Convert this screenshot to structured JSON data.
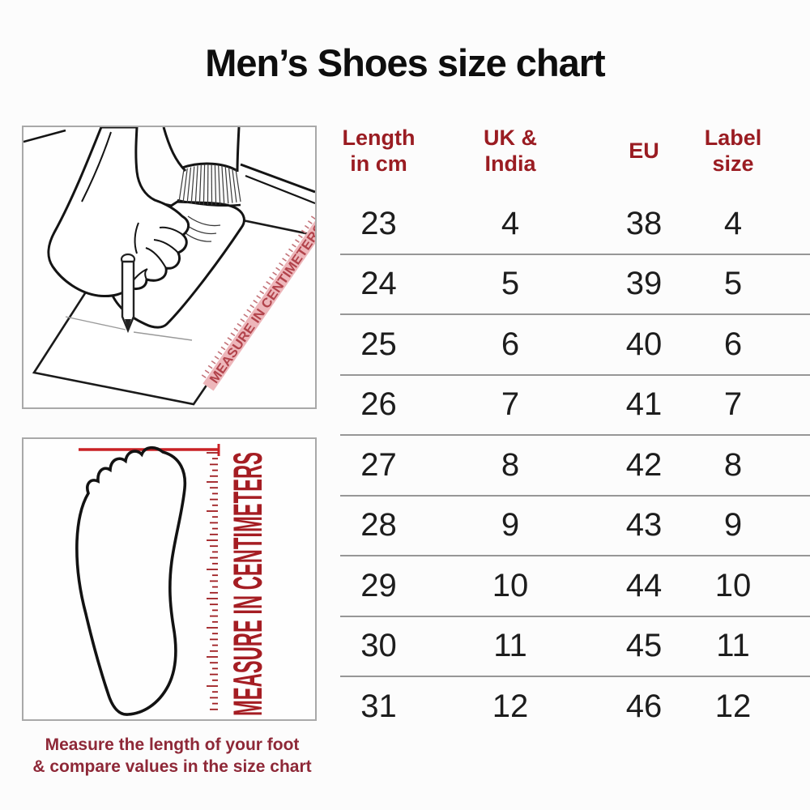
{
  "title": "Men’s Shoes size chart",
  "table": {
    "headers": [
      {
        "line1": "Length",
        "line2": "in cm"
      },
      {
        "line1": "UK &",
        "line2": "India"
      },
      {
        "line1": "EU",
        "line2": ""
      },
      {
        "line1": "Label",
        "line2": "size"
      }
    ],
    "rows": [
      [
        "23",
        "4",
        "38",
        "4"
      ],
      [
        "24",
        "5",
        "39",
        "5"
      ],
      [
        "25",
        "6",
        "40",
        "6"
      ],
      [
        "26",
        "7",
        "41",
        "7"
      ],
      [
        "27",
        "8",
        "42",
        "8"
      ],
      [
        "28",
        "9",
        "43",
        "9"
      ],
      [
        "29",
        "10",
        "44",
        "10"
      ],
      [
        "30",
        "11",
        "45",
        "11"
      ],
      [
        "31",
        "12",
        "46",
        "12"
      ]
    ]
  },
  "chart_data": {
    "type": "table",
    "title": "Men’s Shoes size chart",
    "columns": [
      "Length in cm",
      "UK & India",
      "EU",
      "Label size"
    ],
    "rows": [
      [
        23,
        4,
        38,
        4
      ],
      [
        24,
        5,
        39,
        5
      ],
      [
        25,
        6,
        40,
        6
      ],
      [
        26,
        7,
        41,
        7
      ],
      [
        27,
        8,
        42,
        8
      ],
      [
        28,
        9,
        43,
        9
      ],
      [
        29,
        10,
        44,
        10
      ],
      [
        30,
        11,
        45,
        11
      ],
      [
        31,
        12,
        46,
        12
      ]
    ]
  },
  "illustration1": {
    "ruler_label": "MEASURE IN CENTIMETERS"
  },
  "illustration2": {
    "ruler_label": "MEASURE IN CENTIMETERS"
  },
  "caption": {
    "line1": "Measure the length of your foot",
    "line2": "& compare values in the size chart"
  },
  "colors": {
    "header_red": "#9a1c22",
    "caption_red": "#8e2837",
    "accent_red": "#c92125",
    "ruler_tick_red": "#9e1c20",
    "ruler_pink": "#edb6ba",
    "divider_gray": "#979797",
    "text_black": "#1d1d1d"
  }
}
